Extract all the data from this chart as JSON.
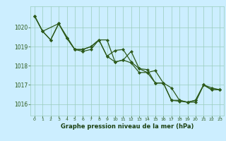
{
  "bg_color": "#cceeff",
  "grid_color": "#99ccbb",
  "line_color": "#2d5a1b",
  "title": "Graphe pression niveau de la mer (hPa)",
  "title_color": "#1a4010",
  "xlim": [
    -0.5,
    23.5
  ],
  "ylim": [
    1015.4,
    1021.1
  ],
  "yticks": [
    1016,
    1017,
    1018,
    1019,
    1020
  ],
  "xticks": [
    0,
    1,
    2,
    3,
    4,
    5,
    6,
    7,
    8,
    9,
    10,
    11,
    12,
    13,
    14,
    15,
    16,
    17,
    18,
    19,
    20,
    21,
    22,
    23
  ],
  "series1": {
    "x": [
      0,
      1,
      2,
      3,
      4,
      5,
      6,
      7,
      8,
      9,
      10,
      11,
      12,
      13,
      14,
      15,
      16,
      17,
      18,
      19,
      20,
      21,
      22,
      23
    ],
    "y": [
      1020.6,
      1019.8,
      1019.35,
      1020.2,
      1019.45,
      1018.85,
      1018.85,
      1019.0,
      1019.35,
      1018.5,
      1018.8,
      1018.85,
      1018.2,
      1017.85,
      1017.8,
      1017.1,
      1017.1,
      1016.2,
      1016.2,
      1016.1,
      1016.2,
      1017.0,
      1016.85,
      1016.75
    ]
  },
  "series2": {
    "x": [
      0,
      1,
      3,
      5,
      6,
      7,
      8,
      9,
      10,
      11,
      12,
      13,
      14,
      15,
      16,
      17,
      18,
      19,
      20,
      21,
      22,
      23
    ],
    "y": [
      1020.6,
      1019.8,
      1020.2,
      1018.85,
      1018.85,
      1019.0,
      1019.35,
      1019.35,
      1018.2,
      1018.3,
      1018.75,
      1017.85,
      1017.65,
      1017.75,
      1017.1,
      1016.85,
      1016.2,
      1016.1,
      1016.1,
      1017.0,
      1016.75,
      1016.75
    ]
  },
  "series3": {
    "x": [
      0,
      1,
      2,
      3,
      4,
      5,
      6,
      7,
      8,
      9,
      10,
      11,
      12,
      13,
      14,
      15,
      16,
      17,
      18,
      19,
      20,
      21,
      22,
      23
    ],
    "y": [
      1020.6,
      1019.8,
      1019.35,
      1020.2,
      1019.45,
      1018.85,
      1018.75,
      1018.85,
      1019.35,
      1018.5,
      1018.2,
      1018.3,
      1018.15,
      1017.65,
      1017.65,
      1017.1,
      1017.1,
      1016.2,
      1016.15,
      1016.1,
      1016.2,
      1017.0,
      1016.75,
      1016.75
    ]
  }
}
